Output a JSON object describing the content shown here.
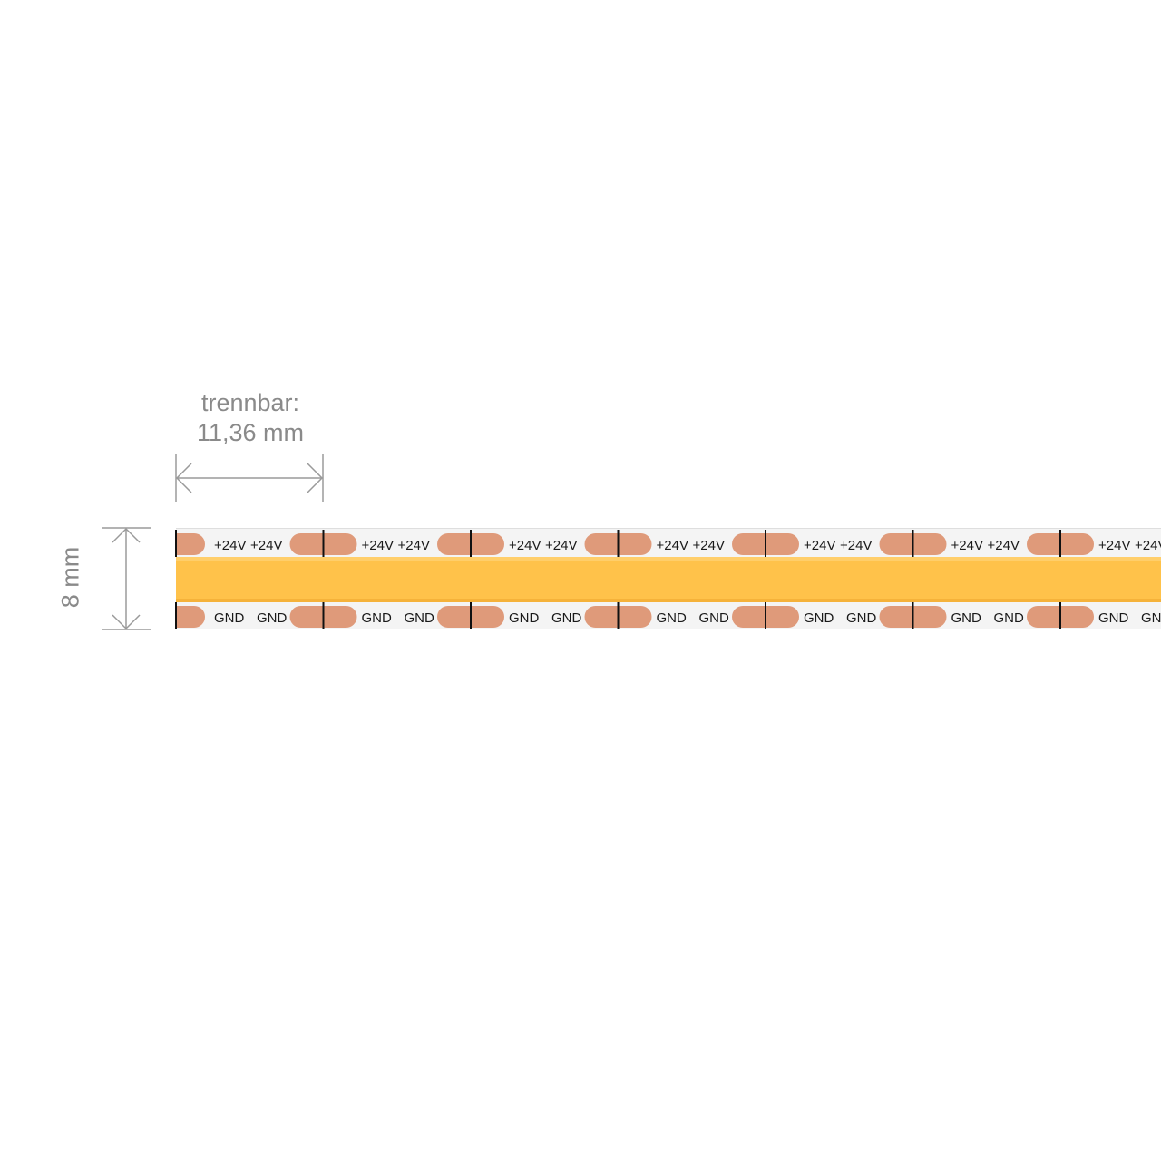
{
  "cut_interval": {
    "label_line1": "trennbar:",
    "label_line2": "11,36 mm"
  },
  "strip_width": {
    "label": "8 mm"
  },
  "pad_labels": {
    "top": "+24V",
    "bottom": "GND"
  },
  "segments_visible": 7,
  "colors": {
    "phosphor": "#ffc24a",
    "copper_pad": "#df9a7a",
    "pcb": "#f4f4f4",
    "dimension_line": "#9a9a9a",
    "text": "#1a1a1a"
  }
}
